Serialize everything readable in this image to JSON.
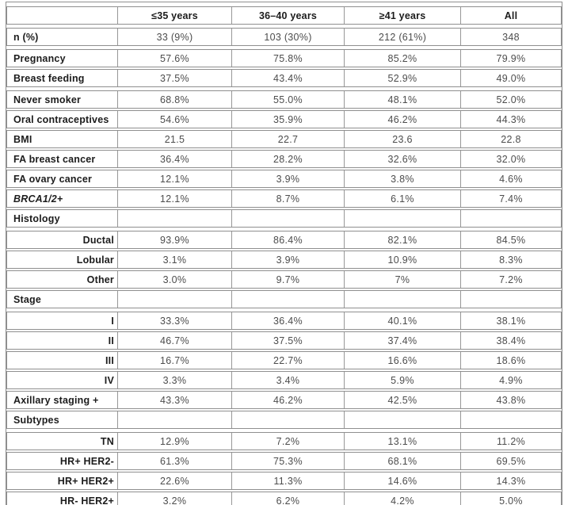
{
  "table": {
    "columns": [
      "",
      "≤35 years",
      "36–40 years",
      "≥41 years",
      "All"
    ],
    "rows": [
      {
        "label": "n (%)",
        "values": [
          "33 (9%)",
          "103 (30%)",
          "212 (61%)",
          "348"
        ]
      },
      {
        "label": "Pregnancy",
        "values": [
          "57.6%",
          "75.8%",
          "85.2%",
          "79.9%"
        ]
      },
      {
        "label": "Breast feeding",
        "values": [
          "37.5%",
          "43.4%",
          "52.9%",
          "49.0%"
        ]
      },
      {
        "label": "Never smoker",
        "values": [
          "68.8%",
          "55.0%",
          "48.1%",
          "52.0%"
        ]
      },
      {
        "label": "Oral contraceptives",
        "values": [
          "54.6%",
          "35.9%",
          "46.2%",
          "44.3%"
        ]
      },
      {
        "label": "BMI",
        "values": [
          "21.5",
          "22.7",
          "23.6",
          "22.8"
        ]
      },
      {
        "label": "FA breast cancer",
        "values": [
          "36.4%",
          "28.2%",
          "32.6%",
          "32.0%"
        ]
      },
      {
        "label": "FA ovary cancer",
        "values": [
          "12.1%",
          "3.9%",
          "3.8%",
          "4.6%"
        ]
      },
      {
        "label": "BRCA1/2+",
        "italic": true,
        "values": [
          "12.1%",
          "8.7%",
          "6.1%",
          "7.4%"
        ]
      },
      {
        "label": "Histology",
        "section": true,
        "values": [
          "",
          "",
          "",
          ""
        ]
      },
      {
        "label": "Ductal",
        "indent": true,
        "values": [
          "93.9%",
          "86.4%",
          "82.1%",
          "84.5%"
        ]
      },
      {
        "label": "Lobular",
        "indent": true,
        "values": [
          "3.1%",
          "3.9%",
          "10.9%",
          "8.3%"
        ]
      },
      {
        "label": "Other",
        "indent": true,
        "values": [
          "3.0%",
          "9.7%",
          "7%",
          "7.2%"
        ]
      },
      {
        "label": "Stage",
        "section": true,
        "values": [
          "",
          "",
          "",
          ""
        ]
      },
      {
        "label": "I",
        "indent": true,
        "values": [
          "33.3%",
          "36.4%",
          "40.1%",
          "38.1%"
        ]
      },
      {
        "label": "II",
        "indent": true,
        "values": [
          "46.7%",
          "37.5%",
          "37.4%",
          "38.4%"
        ]
      },
      {
        "label": "III",
        "indent": true,
        "values": [
          "16.7%",
          "22.7%",
          "16.6%",
          "18.6%"
        ]
      },
      {
        "label": "IV",
        "indent": true,
        "values": [
          "3.3%",
          "3.4%",
          "5.9%",
          "4.9%"
        ]
      },
      {
        "label": "Axillary staging +",
        "values": [
          "43.3%",
          "46.2%",
          "42.5%",
          "43.8%"
        ]
      },
      {
        "label": "Subtypes",
        "section": true,
        "values": [
          "",
          "",
          "",
          ""
        ]
      },
      {
        "label": "TN",
        "indent": true,
        "values": [
          "12.9%",
          "7.2%",
          "13.1%",
          "11.2%"
        ]
      },
      {
        "label": "HR+ HER2-",
        "indent": true,
        "values": [
          "61.3%",
          "75.3%",
          "68.1%",
          "69.5%"
        ]
      },
      {
        "label": "HR+ HER2+",
        "indent": true,
        "values": [
          "22.6%",
          "11.3%",
          "14.6%",
          "14.3%"
        ]
      },
      {
        "label": "HR- HER2+",
        "indent": true,
        "values": [
          "3.2%",
          "6.2%",
          "4.2%",
          "5.0%"
        ]
      }
    ],
    "colors": {
      "border": "#8f8f8f",
      "label_text": "#1c1c1c",
      "value_text": "#4d4d4d",
      "background": "#ffffff"
    }
  }
}
